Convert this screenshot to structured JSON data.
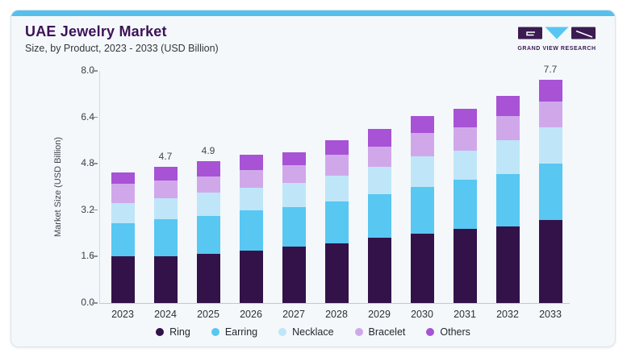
{
  "header": {
    "title": "UAE Jewelry Market",
    "subtitle": "Size, by Product, 2023 - 2033 (USD Billion)",
    "logo_text": "GRAND VIEW RESEARCH"
  },
  "colors": {
    "accent_bar": "#57bfeb",
    "title_text": "#3e1158",
    "logo_purple": "#3b1b52",
    "logo_blue": "#58c6f2",
    "section_bg": "#f4f8fb"
  },
  "chart_data": {
    "type": "bar",
    "stacked": true,
    "title": "UAE Jewelry Market",
    "subtitle": "Size, by Product, 2023 - 2033 (USD Billion)",
    "xlabel": "",
    "ylabel": "Market Size (USD Billion)",
    "ylim": [
      0,
      8.0
    ],
    "yticks": [
      "0.0",
      "1.6",
      "3.2",
      "4.8",
      "6.4",
      "8.0"
    ],
    "grid": false,
    "legend_position": "bottom",
    "categories": [
      "2023",
      "2024",
      "2025",
      "2026",
      "2027",
      "2028",
      "2029",
      "2030",
      "2031",
      "2032",
      "2033"
    ],
    "series": [
      {
        "name": "Ring",
        "color": "#331249",
        "values": [
          1.6,
          1.6,
          1.7,
          1.8,
          1.95,
          2.05,
          2.25,
          2.4,
          2.55,
          2.65,
          2.85
        ]
      },
      {
        "name": "Earring",
        "color": "#58c7f2",
        "values": [
          1.15,
          1.28,
          1.3,
          1.4,
          1.35,
          1.45,
          1.5,
          1.6,
          1.7,
          1.8,
          1.95
        ]
      },
      {
        "name": "Necklace",
        "color": "#bee6f8",
        "values": [
          0.7,
          0.72,
          0.8,
          0.78,
          0.85,
          0.9,
          0.95,
          1.05,
          1.0,
          1.15,
          1.25
        ]
      },
      {
        "name": "Bracelet",
        "color": "#d0a8ea",
        "values": [
          0.65,
          0.62,
          0.55,
          0.6,
          0.6,
          0.7,
          0.7,
          0.8,
          0.8,
          0.85,
          0.9
        ]
      },
      {
        "name": "Others",
        "color": "#a852d6",
        "values": [
          0.4,
          0.48,
          0.55,
          0.52,
          0.45,
          0.5,
          0.6,
          0.6,
          0.65,
          0.7,
          0.75
        ]
      }
    ],
    "totals": [
      4.5,
      4.7,
      4.9,
      5.1,
      5.2,
      5.6,
      6.0,
      6.45,
      6.7,
      7.15,
      7.7
    ],
    "bar_labels": {
      "2024": "4.7",
      "2025": "4.9",
      "2033": "7.7"
    }
  }
}
